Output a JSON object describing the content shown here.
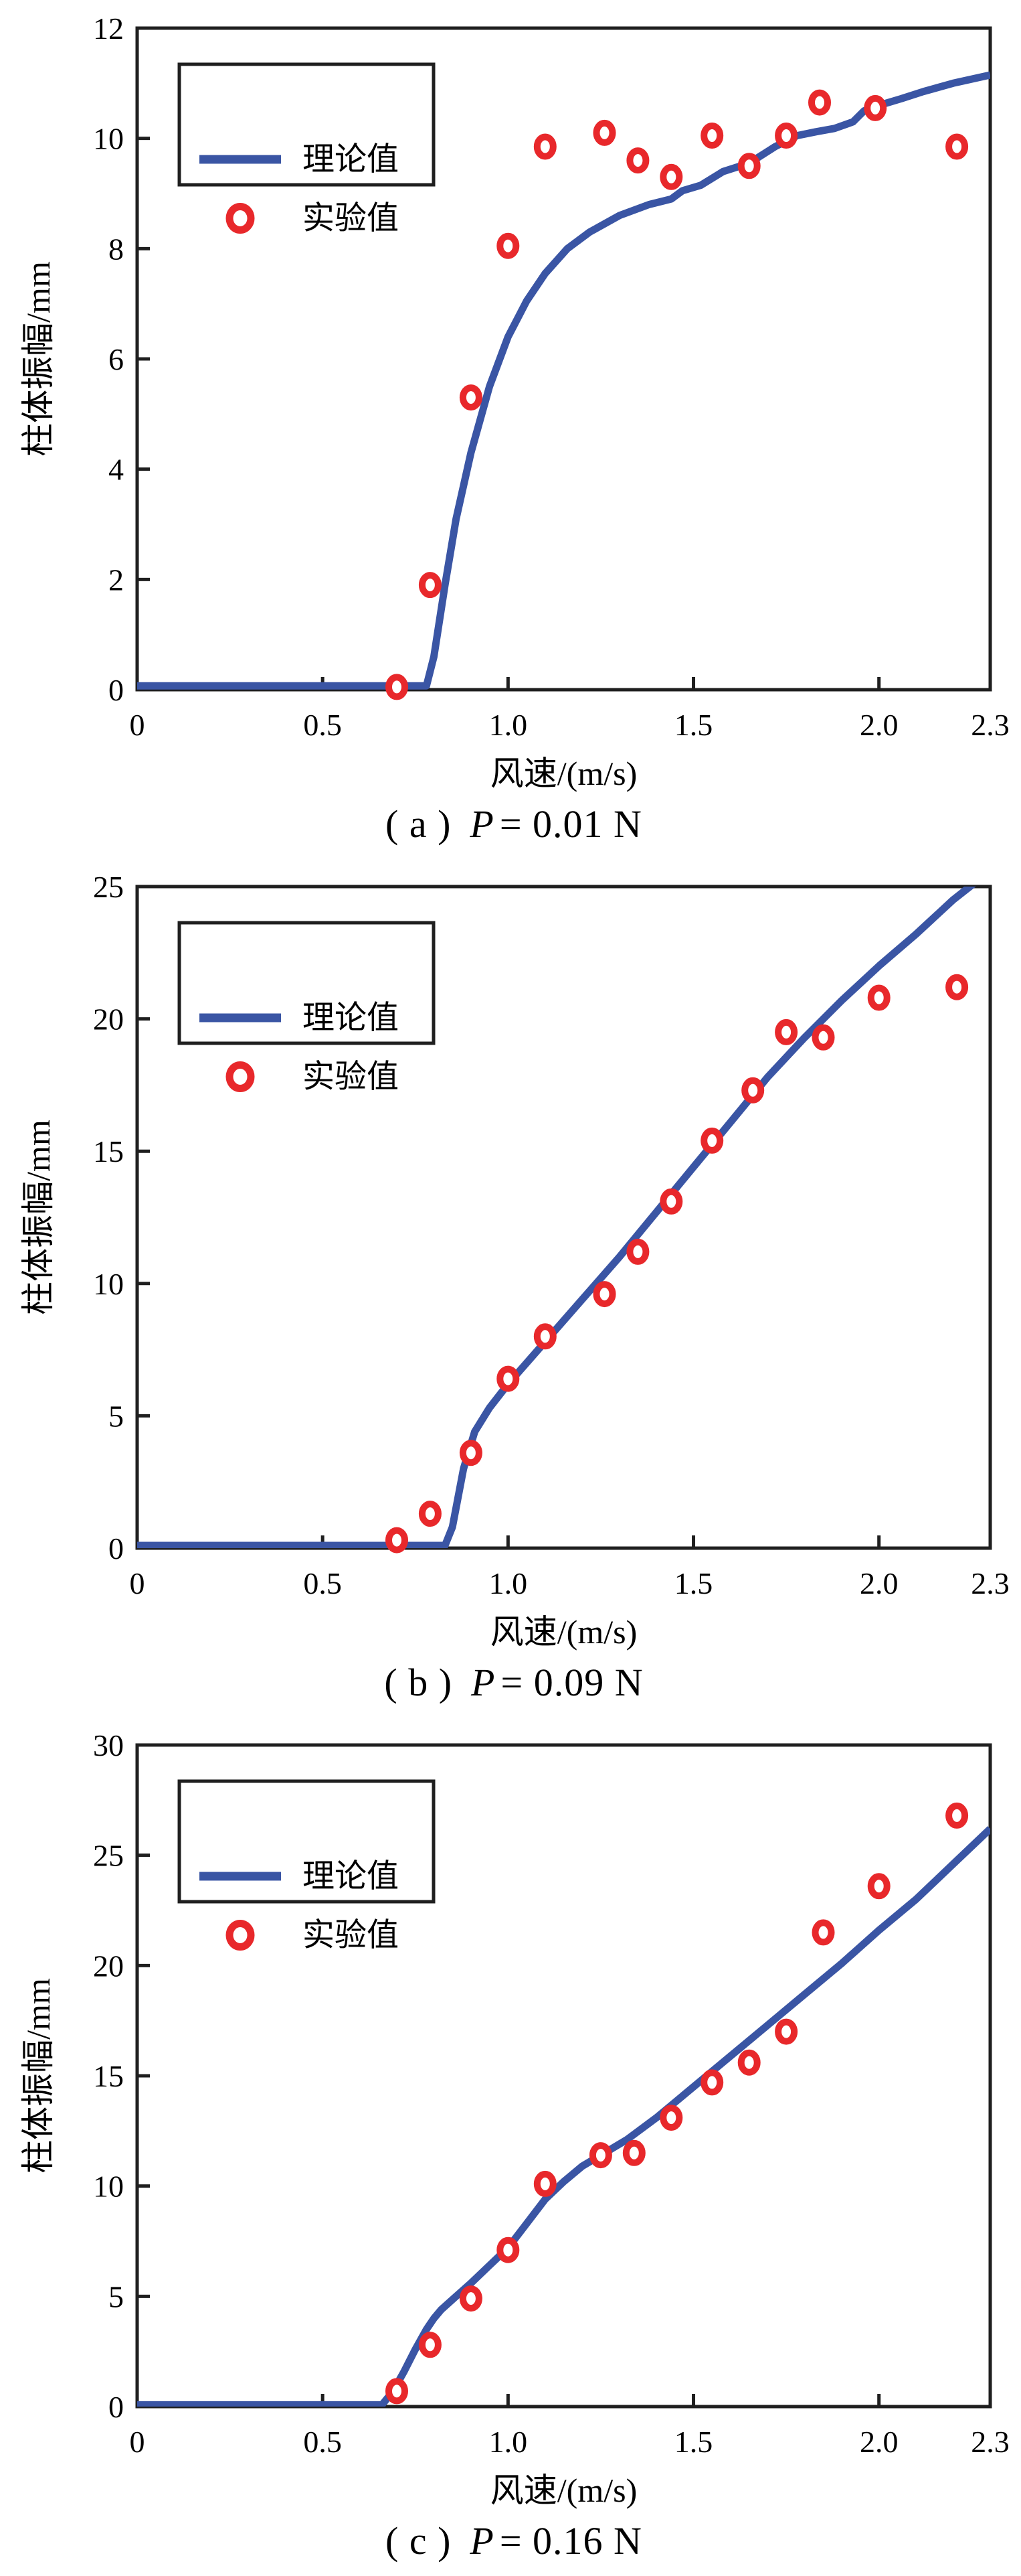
{
  "style": {
    "line_color": "#3a55a4",
    "marker_color": "#e8282b",
    "axis_color": "#1f1f1f",
    "text_color": "#000000",
    "background": "#ffffff"
  },
  "legend": {
    "line_label": "理论值",
    "marker_label": "实验值",
    "position": "upper-left"
  },
  "chart_data": [
    {
      "id": "a",
      "type": "line+scatter",
      "title": "(a) P = 0.01 N",
      "caption": {
        "prefix": "( a )",
        "var": "P",
        "suffix": "= 0.01 N"
      },
      "xlabel": "风速/(m/s)",
      "ylabel": "柱体振幅/mm",
      "xlim": [
        0,
        2.3
      ],
      "ylim": [
        0,
        12
      ],
      "grid": false,
      "xticks": {
        "values": [
          0,
          0.5,
          1.0,
          1.5,
          2.0,
          2.3
        ],
        "labels": [
          "0",
          "0.5",
          "1.0",
          "1.5",
          "2.0",
          "2.3"
        ]
      },
      "yticks": {
        "values": [
          0,
          2,
          4,
          6,
          8,
          10,
          12
        ],
        "labels": [
          "0",
          "2",
          "4",
          "6",
          "8",
          "10",
          "12"
        ]
      },
      "series": [
        {
          "name": "理论值",
          "kind": "line",
          "points": [
            [
              0,
              0.07
            ],
            [
              0.4,
              0.07
            ],
            [
              0.6,
              0.07
            ],
            [
              0.78,
              0.07
            ],
            [
              0.8,
              0.6
            ],
            [
              0.83,
              1.9
            ],
            [
              0.86,
              3.1
            ],
            [
              0.9,
              4.3
            ],
            [
              0.95,
              5.5
            ],
            [
              1.0,
              6.4
            ],
            [
              1.05,
              7.05
            ],
            [
              1.1,
              7.55
            ],
            [
              1.16,
              8.0
            ],
            [
              1.22,
              8.3
            ],
            [
              1.3,
              8.6
            ],
            [
              1.38,
              8.8
            ],
            [
              1.44,
              8.9
            ],
            [
              1.47,
              9.05
            ],
            [
              1.52,
              9.15
            ],
            [
              1.58,
              9.4
            ],
            [
              1.65,
              9.55
            ],
            [
              1.72,
              9.85
            ],
            [
              1.78,
              10.05
            ],
            [
              1.83,
              10.12
            ],
            [
              1.88,
              10.18
            ],
            [
              1.93,
              10.3
            ],
            [
              1.96,
              10.5
            ],
            [
              2.0,
              10.6
            ],
            [
              2.06,
              10.72
            ],
            [
              2.12,
              10.85
            ],
            [
              2.2,
              11.0
            ],
            [
              2.3,
              11.15
            ]
          ]
        },
        {
          "name": "实验值",
          "kind": "scatter",
          "points": [
            [
              0.7,
              0.05
            ],
            [
              0.79,
              1.9
            ],
            [
              0.9,
              5.3
            ],
            [
              1.0,
              8.05
            ],
            [
              1.1,
              9.85
            ],
            [
              1.26,
              10.1
            ],
            [
              1.35,
              9.6
            ],
            [
              1.44,
              9.3
            ],
            [
              1.55,
              10.05
            ],
            [
              1.65,
              9.5
            ],
            [
              1.75,
              10.05
            ],
            [
              1.84,
              10.65
            ],
            [
              1.99,
              10.55
            ],
            [
              2.21,
              9.85
            ]
          ]
        }
      ]
    },
    {
      "id": "b",
      "type": "line+scatter",
      "title": "(b) P = 0.09 N",
      "caption": {
        "prefix": "( b )",
        "var": "P",
        "suffix": "= 0.09 N"
      },
      "xlabel": "风速/(m/s)",
      "ylabel": "柱体振幅/mm",
      "xlim": [
        0,
        2.3
      ],
      "ylim": [
        0,
        25
      ],
      "grid": false,
      "xticks": {
        "values": [
          0,
          0.5,
          1.0,
          1.5,
          2.0,
          2.3
        ],
        "labels": [
          "0",
          "0.5",
          "1.0",
          "1.5",
          "2.0",
          "2.3"
        ]
      },
      "yticks": {
        "values": [
          0,
          5,
          10,
          15,
          20,
          25
        ],
        "labels": [
          "0",
          "5",
          "10",
          "15",
          "20",
          "25"
        ]
      },
      "series": [
        {
          "name": "理论值",
          "kind": "line",
          "points": [
            [
              0,
              0.1
            ],
            [
              0.5,
              0.1
            ],
            [
              0.83,
              0.1
            ],
            [
              0.85,
              0.8
            ],
            [
              0.88,
              3.0
            ],
            [
              0.91,
              4.4
            ],
            [
              0.95,
              5.3
            ],
            [
              1.0,
              6.2
            ],
            [
              1.05,
              7.0
            ],
            [
              1.1,
              7.8
            ],
            [
              1.2,
              9.4
            ],
            [
              1.3,
              11.0
            ],
            [
              1.4,
              12.7
            ],
            [
              1.5,
              14.4
            ],
            [
              1.6,
              16.1
            ],
            [
              1.7,
              17.8
            ],
            [
              1.8,
              19.3
            ],
            [
              1.9,
              20.7
            ],
            [
              2.0,
              22.0
            ],
            [
              2.1,
              23.2
            ],
            [
              2.2,
              24.5
            ],
            [
              2.3,
              25.6
            ]
          ]
        },
        {
          "name": "实验值",
          "kind": "scatter",
          "points": [
            [
              0.7,
              0.3
            ],
            [
              0.79,
              1.3
            ],
            [
              0.9,
              3.6
            ],
            [
              1.0,
              6.4
            ],
            [
              1.1,
              8.0
            ],
            [
              1.26,
              9.6
            ],
            [
              1.35,
              11.2
            ],
            [
              1.44,
              13.1
            ],
            [
              1.55,
              15.4
            ],
            [
              1.66,
              17.3
            ],
            [
              1.75,
              19.5
            ],
            [
              1.85,
              19.3
            ],
            [
              2.0,
              20.8
            ],
            [
              2.21,
              21.2
            ]
          ]
        }
      ]
    },
    {
      "id": "c",
      "type": "line+scatter",
      "title": "(c) P = 0.16 N",
      "caption": {
        "prefix": "( c )",
        "var": "P",
        "suffix": "= 0.16 N"
      },
      "xlabel": "风速/(m/s)",
      "ylabel": "柱体振幅/mm",
      "xlim": [
        0,
        2.3
      ],
      "ylim": [
        0,
        30
      ],
      "grid": false,
      "xticks": {
        "values": [
          0,
          0.5,
          1.0,
          1.5,
          2.0,
          2.3
        ],
        "labels": [
          "0",
          "0.5",
          "1.0",
          "1.5",
          "2.0",
          "2.3"
        ]
      },
      "yticks": {
        "values": [
          0,
          5,
          10,
          15,
          20,
          25,
          30
        ],
        "labels": [
          "0",
          "5",
          "10",
          "15",
          "20",
          "25",
          "30"
        ]
      },
      "series": [
        {
          "name": "理论值",
          "kind": "line",
          "points": [
            [
              0,
              0.08
            ],
            [
              0.4,
              0.08
            ],
            [
              0.66,
              0.08
            ],
            [
              0.69,
              0.7
            ],
            [
              0.72,
              1.6
            ],
            [
              0.75,
              2.6
            ],
            [
              0.78,
              3.5
            ],
            [
              0.8,
              4.0
            ],
            [
              0.82,
              4.4
            ],
            [
              0.86,
              5.0
            ],
            [
              0.9,
              5.6
            ],
            [
              0.95,
              6.4
            ],
            [
              1.0,
              7.2
            ],
            [
              1.05,
              8.3
            ],
            [
              1.1,
              9.4
            ],
            [
              1.15,
              10.2
            ],
            [
              1.2,
              10.9
            ],
            [
              1.25,
              11.4
            ],
            [
              1.32,
              12.1
            ],
            [
              1.4,
              13.1
            ],
            [
              1.5,
              14.5
            ],
            [
              1.6,
              15.9
            ],
            [
              1.7,
              17.3
            ],
            [
              1.8,
              18.7
            ],
            [
              1.9,
              20.1
            ],
            [
              2.0,
              21.6
            ],
            [
              2.1,
              23.0
            ],
            [
              2.2,
              24.6
            ],
            [
              2.3,
              26.2
            ]
          ]
        },
        {
          "name": "实验值",
          "kind": "scatter",
          "points": [
            [
              0.7,
              0.7
            ],
            [
              0.79,
              2.8
            ],
            [
              0.9,
              4.9
            ],
            [
              1.0,
              7.1
            ],
            [
              1.1,
              10.1
            ],
            [
              1.25,
              11.4
            ],
            [
              1.34,
              11.5
            ],
            [
              1.44,
              13.1
            ],
            [
              1.55,
              14.7
            ],
            [
              1.65,
              15.6
            ],
            [
              1.75,
              17.0
            ],
            [
              1.85,
              21.5
            ],
            [
              2.0,
              23.6
            ],
            [
              2.21,
              26.8
            ]
          ]
        }
      ]
    }
  ]
}
